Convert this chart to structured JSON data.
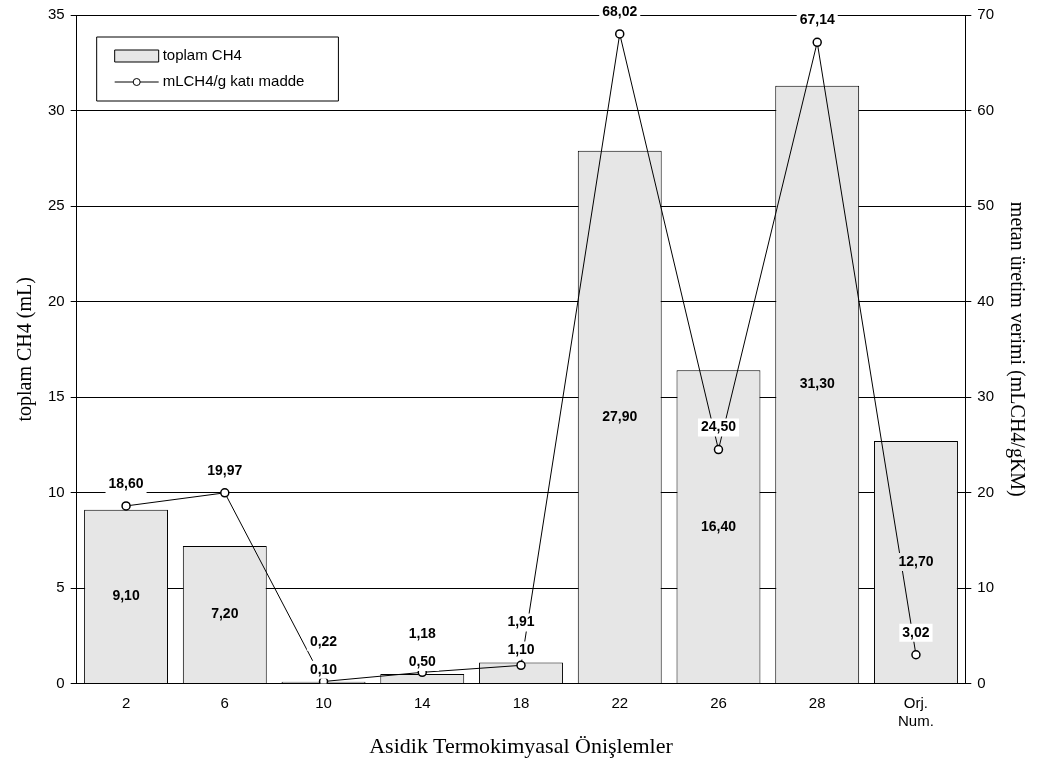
{
  "chart_data": {
    "type": "bar",
    "xlabel": "Asidik Termokimyasal Önişlemler",
    "ylabel": "toplam CH4 (mL)",
    "y2label": "metan üretim verimi (mLCH4/gKM)",
    "categories": [
      "2",
      "6",
      "10",
      "14",
      "18",
      "22",
      "26",
      "28",
      "Orj. Num."
    ],
    "series": [
      {
        "name": "toplam CH4",
        "color": "#e6e6e6",
        "values": [
          9.1,
          7.2,
          0.1,
          0.5,
          1.1,
          27.9,
          16.4,
          31.3,
          12.7
        ],
        "value_labels": [
          "9,10",
          "7,20",
          "0,10",
          "0,50",
          "1,10",
          "27,90",
          "16,40",
          "31,30",
          "12,70"
        ]
      },
      {
        "name": "mLCH4/g katı madde",
        "type": "line",
        "axis": "y2",
        "color": "#000000",
        "marker": "circle",
        "values": [
          18.6,
          19.97,
          0.22,
          1.18,
          1.91,
          68.02,
          24.5,
          67.14,
          3.02
        ],
        "value_labels": [
          "18,60",
          "19,97",
          "0,22",
          "1,18",
          "1,91",
          "68,02",
          "24,50",
          "67,14",
          "3,02"
        ]
      }
    ],
    "ylim": [
      0,
      35
    ],
    "yticks": [
      0,
      5,
      10,
      15,
      20,
      25,
      30,
      35
    ],
    "y2lim": [
      0,
      70
    ],
    "y2ticks": [
      0,
      10,
      20,
      30,
      40,
      50,
      60,
      70
    ],
    "grid": "y",
    "legend": "top left"
  }
}
